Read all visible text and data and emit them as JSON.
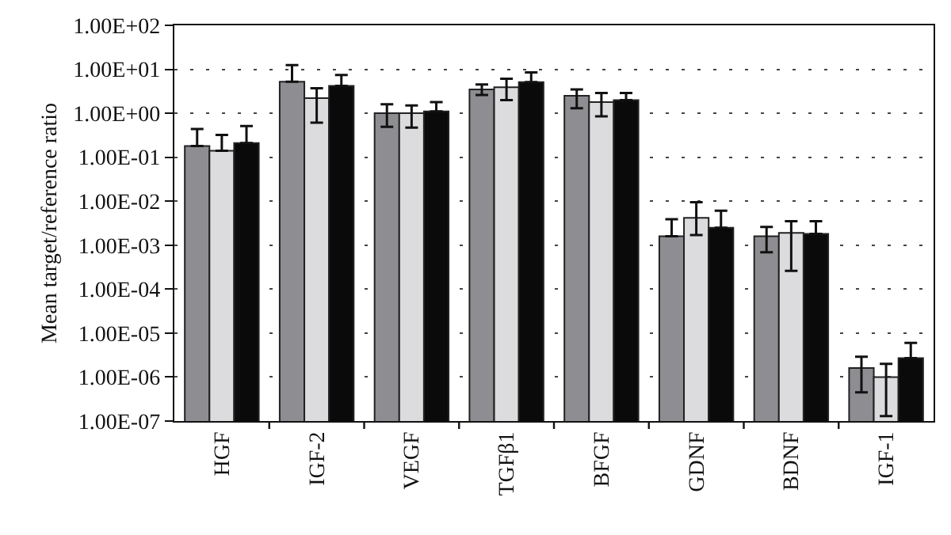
{
  "chart_data": {
    "type": "bar",
    "ylabel": "Mean target/reference ratio",
    "categories": [
      "HGF",
      "IGF-2",
      "VEGF",
      "TGFβ1",
      "BFGF",
      "GDNF",
      "BDNF",
      "IGF-1"
    ],
    "series": [
      {
        "color": "#8e8e92",
        "values": [
          0.18,
          5.2,
          1.0,
          3.5,
          2.5,
          0.0016,
          0.0016,
          1.6e-06
        ],
        "errors": [
          [
            0.18,
            0.44
          ],
          [
            5.2,
            12.5
          ],
          [
            0.49,
            1.6
          ],
          [
            2.6,
            4.5
          ],
          [
            1.3,
            3.5
          ],
          [
            0.0016,
            0.0039
          ],
          [
            0.00069,
            0.0026
          ],
          [
            4.5e-07,
            2.9e-06
          ]
        ]
      },
      {
        "color": "#dcdcde",
        "values": [
          0.14,
          2.2,
          1.0,
          3.9,
          1.8,
          0.0042,
          0.0019,
          1e-06
        ],
        "errors": [
          [
            0.14,
            0.32
          ],
          [
            0.61,
            3.7
          ],
          [
            0.47,
            1.5
          ],
          [
            2.0,
            6.1
          ],
          [
            0.85,
            2.9
          ],
          [
            0.0017,
            0.0095
          ],
          [
            0.00026,
            0.0035
          ],
          [
            1.3e-07,
            2e-06
          ]
        ]
      },
      {
        "color": "#0a0a0a",
        "values": [
          0.21,
          4.2,
          1.1,
          5.1,
          2.0,
          0.0025,
          0.0018,
          2.7e-06
        ],
        "errors": [
          [
            0.21,
            0.51
          ],
          [
            4.2,
            7.4
          ],
          [
            1.1,
            1.8
          ],
          [
            5.1,
            8.5
          ],
          [
            2.0,
            2.9
          ],
          [
            0.0025,
            0.0061
          ],
          [
            0.0018,
            0.0035
          ],
          [
            2.7e-06,
            6e-06
          ]
        ]
      }
    ],
    "log": "y",
    "ylim": [
      1e-07,
      100
    ],
    "yticks": [
      {
        "value": 1e-07,
        "label": "1.00E-07"
      },
      {
        "value": 1e-06,
        "label": "1.00E-06"
      },
      {
        "value": 1e-05,
        "label": "1.00E-05"
      },
      {
        "value": 0.0001,
        "label": "1.00E-04"
      },
      {
        "value": 0.001,
        "label": "1.00E-03"
      },
      {
        "value": 0.01,
        "label": "1.00E-02"
      },
      {
        "value": 0.1,
        "label": "1.00E-01"
      },
      {
        "value": 1,
        "label": "1.00E+00"
      },
      {
        "value": 10,
        "label": "1.00E+01"
      },
      {
        "value": 100,
        "label": "1.00E+02"
      }
    ],
    "grid": "y"
  }
}
